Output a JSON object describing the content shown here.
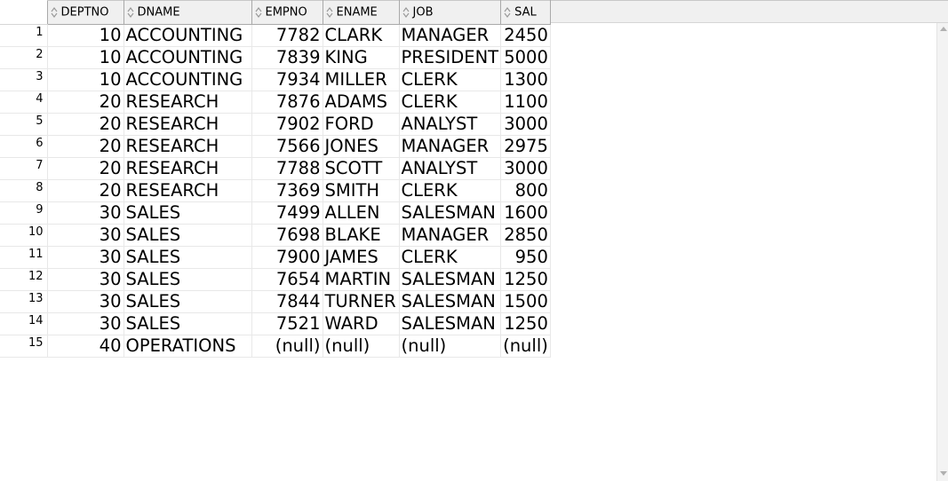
{
  "columns": [
    {
      "key": "DEPTNO",
      "label": "DEPTNO",
      "align": "num"
    },
    {
      "key": "DNAME",
      "label": "DNAME",
      "align": "txt"
    },
    {
      "key": "EMPNO",
      "label": "EMPNO",
      "align": "num"
    },
    {
      "key": "ENAME",
      "label": "ENAME",
      "align": "txt"
    },
    {
      "key": "JOB",
      "label": "JOB",
      "align": "txt"
    },
    {
      "key": "SAL",
      "label": "SAL",
      "align": "num"
    }
  ],
  "rows": [
    {
      "n": "1",
      "cells": [
        "10",
        "ACCOUNTING",
        "7782",
        "CLARK",
        "MANAGER",
        "2450"
      ]
    },
    {
      "n": "2",
      "cells": [
        "10",
        "ACCOUNTING",
        "7839",
        "KING",
        "PRESIDENT",
        "5000"
      ]
    },
    {
      "n": "3",
      "cells": [
        "10",
        "ACCOUNTING",
        "7934",
        "MILLER",
        "CLERK",
        "1300"
      ]
    },
    {
      "n": "4",
      "cells": [
        "20",
        "RESEARCH",
        "7876",
        "ADAMS",
        "CLERK",
        "1100"
      ]
    },
    {
      "n": "5",
      "cells": [
        "20",
        "RESEARCH",
        "7902",
        "FORD",
        "ANALYST",
        "3000"
      ]
    },
    {
      "n": "6",
      "cells": [
        "20",
        "RESEARCH",
        "7566",
        "JONES",
        "MANAGER",
        "2975"
      ]
    },
    {
      "n": "7",
      "cells": [
        "20",
        "RESEARCH",
        "7788",
        "SCOTT",
        "ANALYST",
        "3000"
      ]
    },
    {
      "n": "8",
      "cells": [
        "20",
        "RESEARCH",
        "7369",
        "SMITH",
        "CLERK",
        "800"
      ]
    },
    {
      "n": "9",
      "cells": [
        "30",
        "SALES",
        "7499",
        "ALLEN",
        "SALESMAN",
        "1600"
      ]
    },
    {
      "n": "10",
      "cells": [
        "30",
        "SALES",
        "7698",
        "BLAKE",
        "MANAGER",
        "2850"
      ]
    },
    {
      "n": "11",
      "cells": [
        "30",
        "SALES",
        "7900",
        "JAMES",
        "CLERK",
        "950"
      ]
    },
    {
      "n": "12",
      "cells": [
        "30",
        "SALES",
        "7654",
        "MARTIN",
        "SALESMAN",
        "1250"
      ]
    },
    {
      "n": "13",
      "cells": [
        "30",
        "SALES",
        "7844",
        "TURNER",
        "SALESMAN",
        "1500"
      ]
    },
    {
      "n": "14",
      "cells": [
        "30",
        "SALES",
        "7521",
        "WARD",
        "SALESMAN",
        "1250"
      ]
    },
    {
      "n": "15",
      "cells": [
        "40",
        "OPERATIONS",
        "(null)",
        "(null)",
        "(null)",
        "(null)"
      ]
    }
  ],
  "icons": {
    "sort": "sort-updown-icon"
  },
  "colors": {
    "header_bg": "#f0f0f0",
    "grid_line": "#e8e8e8",
    "border": "#a9a9a9"
  }
}
